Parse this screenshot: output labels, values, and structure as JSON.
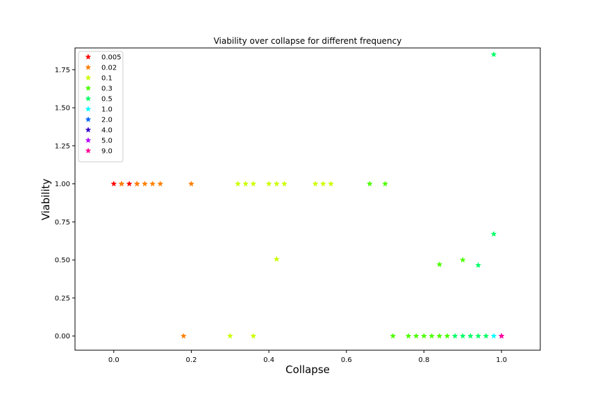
{
  "chart_data": {
    "type": "scatter",
    "title": "Viability over collapse for different frequency",
    "xlabel": "Collapse",
    "ylabel": "Viability",
    "xlim": [
      -0.1,
      1.1
    ],
    "ylim": [
      -0.093,
      1.893
    ],
    "xticks": [
      0.0,
      0.2,
      0.4,
      0.6,
      0.8,
      1.0
    ],
    "xtick_labels": [
      "0.0",
      "0.2",
      "0.4",
      "0.6",
      "0.8",
      "1.0"
    ],
    "yticks": [
      0.0,
      0.25,
      0.5,
      0.75,
      1.0,
      1.25,
      1.5,
      1.75
    ],
    "ytick_labels": [
      "0.00",
      "0.25",
      "0.50",
      "0.75",
      "1.00",
      "1.25",
      "1.50",
      "1.75"
    ],
    "grid": false,
    "legend_position": "upper left",
    "marker": "star",
    "series": [
      {
        "name": "0.005",
        "color": "#ff0000",
        "points": [
          [
            0.0,
            1.0
          ],
          [
            0.02,
            1.0
          ],
          [
            0.04,
            1.0
          ],
          [
            0.06,
            1.0
          ]
        ]
      },
      {
        "name": "0.02",
        "color": "#ff7f00",
        "points": [
          [
            0.02,
            1.0
          ],
          [
            0.06,
            1.0
          ],
          [
            0.08,
            1.0
          ],
          [
            0.1,
            1.0
          ],
          [
            0.12,
            1.0
          ],
          [
            0.18,
            0.0
          ],
          [
            0.2,
            1.0
          ]
        ]
      },
      {
        "name": "0.1",
        "color": "#ccff00",
        "points": [
          [
            0.3,
            0.0
          ],
          [
            0.32,
            1.0
          ],
          [
            0.34,
            1.0
          ],
          [
            0.36,
            1.0
          ],
          [
            0.36,
            0.0
          ],
          [
            0.4,
            1.0
          ],
          [
            0.42,
            1.0
          ],
          [
            0.42,
            0.505
          ],
          [
            0.44,
            1.0
          ],
          [
            0.52,
            1.0
          ],
          [
            0.54,
            1.0
          ],
          [
            0.56,
            1.0
          ]
        ]
      },
      {
        "name": "0.3",
        "color": "#4cff00",
        "points": [
          [
            0.66,
            1.0
          ],
          [
            0.7,
            1.0
          ],
          [
            0.72,
            0.0
          ],
          [
            0.76,
            0.0
          ],
          [
            0.78,
            0.0
          ],
          [
            0.8,
            0.0
          ],
          [
            0.82,
            0.0
          ],
          [
            0.84,
            0.0
          ],
          [
            0.84,
            0.47
          ],
          [
            0.86,
            0.0
          ],
          [
            0.9,
            0.5
          ]
        ]
      },
      {
        "name": "0.5",
        "color": "#00ff66",
        "points": [
          [
            0.88,
            0.0
          ],
          [
            0.9,
            0.0
          ],
          [
            0.92,
            0.0
          ],
          [
            0.94,
            0.0
          ],
          [
            0.94,
            0.465
          ],
          [
            0.96,
            0.0
          ],
          [
            0.98,
            0.67
          ],
          [
            0.98,
            1.85
          ]
        ]
      },
      {
        "name": "1.0",
        "color": "#00ffff",
        "points": [
          [
            0.98,
            0.0
          ]
        ]
      },
      {
        "name": "2.0",
        "color": "#0066ff",
        "points": []
      },
      {
        "name": "4.0",
        "color": "#3300cc",
        "points": [
          [
            1.0,
            0.0
          ]
        ]
      },
      {
        "name": "5.0",
        "color": "#b300ff",
        "points": [
          [
            1.0,
            0.0
          ]
        ]
      },
      {
        "name": "9.0",
        "color": "#ff0099",
        "points": [
          [
            1.0,
            0.0
          ]
        ]
      }
    ]
  }
}
